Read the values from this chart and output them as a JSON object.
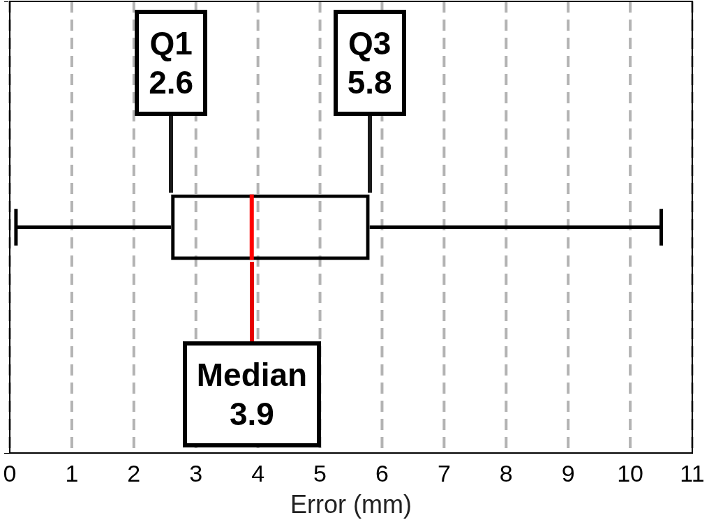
{
  "chart_data": {
    "type": "box",
    "orientation": "horizontal",
    "categories": [
      null
    ],
    "series": [
      {
        "color": "#000000",
        "boxes": [
          {
            "low": 0.1,
            "q1": 2.6,
            "median": 3.9,
            "q3": 5.8,
            "high": 10.5
          }
        ]
      }
    ],
    "xlabel": "Error (mm)",
    "xlim": [
      0,
      11
    ],
    "xticks": [
      0,
      1,
      2,
      3,
      4,
      5,
      6,
      7,
      8,
      9,
      10,
      11
    ],
    "grid": "x",
    "legend": false,
    "tick_labels": "x",
    "annotations": [
      "Q1\n2.6",
      "Q3\n5.8",
      "Median\n3.9"
    ]
  }
}
